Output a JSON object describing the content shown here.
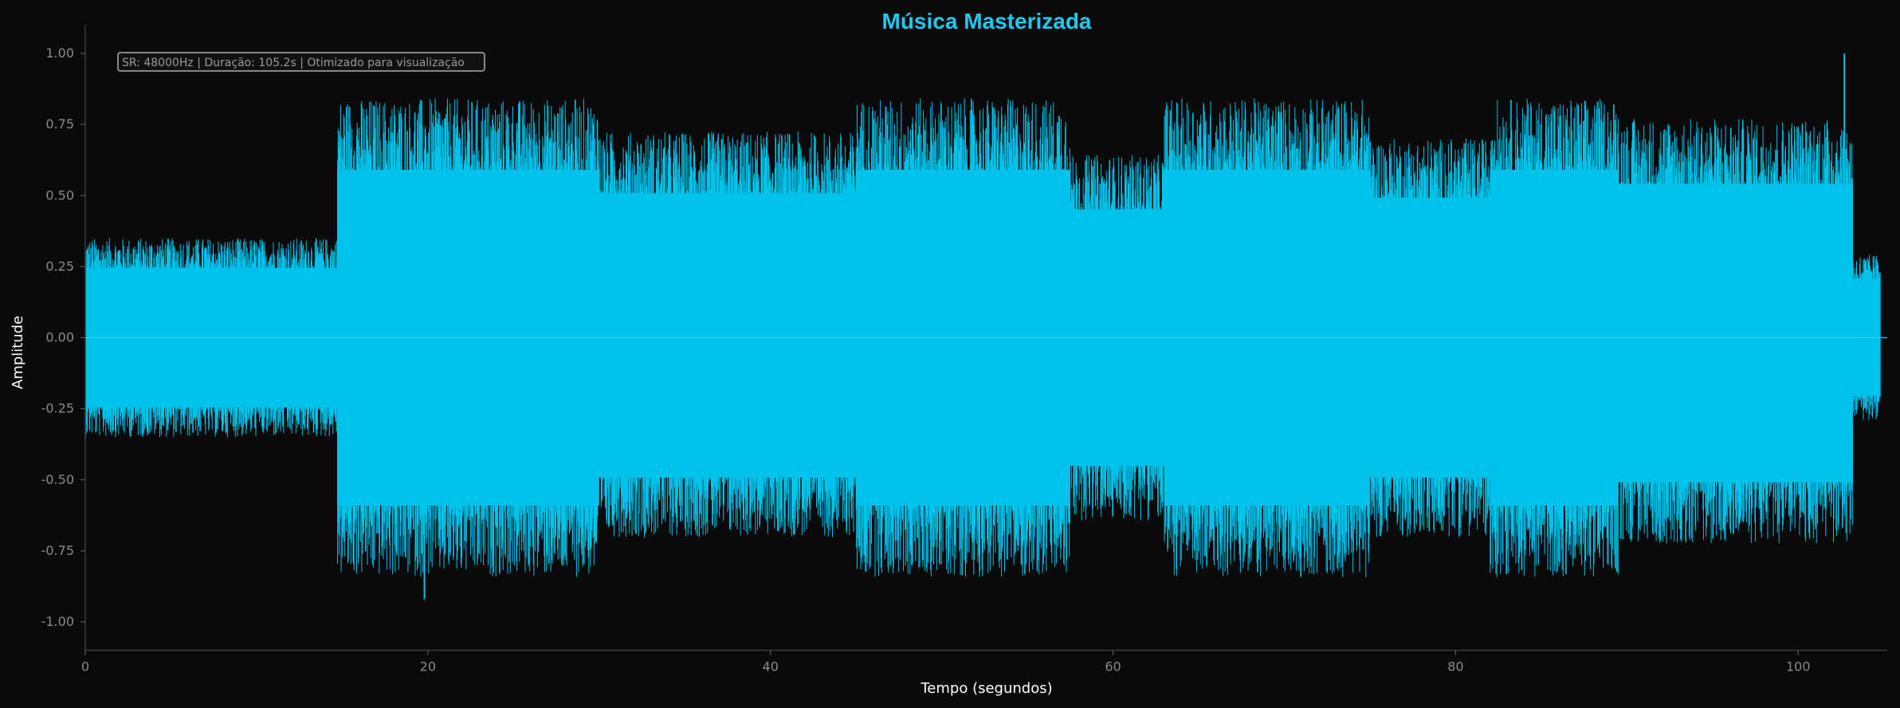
{
  "chart_data": {
    "type": "area",
    "title": "Música Masterizada",
    "xlabel": "Tempo (segundos)",
    "ylabel": "Amplitude",
    "annotation": "SR: 48000Hz | Duração: 105.2s | Otimizado para visualização",
    "xlim": [
      0,
      105.2
    ],
    "ylim": [
      -1.1,
      1.1
    ],
    "xticks": [
      0,
      20,
      40,
      60,
      80,
      100
    ],
    "yticks": [
      -1.0,
      -0.75,
      -0.5,
      -0.25,
      0.0,
      0.25,
      0.5,
      0.75,
      1.0
    ],
    "grid": false,
    "legend": "none",
    "sample_rate_hz": 48000,
    "duration_s": 105.2,
    "colors": {
      "waveform": "#00c3eb",
      "title": "#1ec8ee",
      "background": "#0a0a0a"
    },
    "series": [
      {
        "envelope_segments": [
          {
            "t_start": 0.0,
            "t_end": 14.7,
            "peak_pos": 0.3,
            "peak_neg": -0.3
          },
          {
            "t_start": 14.7,
            "t_end": 30.0,
            "peak_pos": 0.72,
            "peak_neg": -0.72
          },
          {
            "t_start": 30.0,
            "t_end": 45.0,
            "peak_pos": 0.62,
            "peak_neg": -0.6
          },
          {
            "t_start": 45.0,
            "t_end": 57.5,
            "peak_pos": 0.72,
            "peak_neg": -0.72
          },
          {
            "t_start": 57.5,
            "t_end": 63.0,
            "peak_pos": 0.55,
            "peak_neg": -0.55
          },
          {
            "t_start": 63.0,
            "t_end": 75.0,
            "peak_pos": 0.72,
            "peak_neg": -0.72
          },
          {
            "t_start": 75.0,
            "t_end": 82.0,
            "peak_pos": 0.6,
            "peak_neg": -0.6
          },
          {
            "t_start": 82.0,
            "t_end": 89.5,
            "peak_pos": 0.72,
            "peak_neg": -0.72
          },
          {
            "t_start": 89.5,
            "t_end": 103.2,
            "peak_pos": 0.66,
            "peak_neg": -0.62
          },
          {
            "t_start": 103.2,
            "t_end": 104.8,
            "peak_pos": 0.25,
            "peak_neg": -0.25
          }
        ],
        "max_peak": {
          "t": 102.7,
          "value": 1.0
        },
        "min_peak": {
          "t": 19.8,
          "value": -0.92
        }
      }
    ]
  }
}
